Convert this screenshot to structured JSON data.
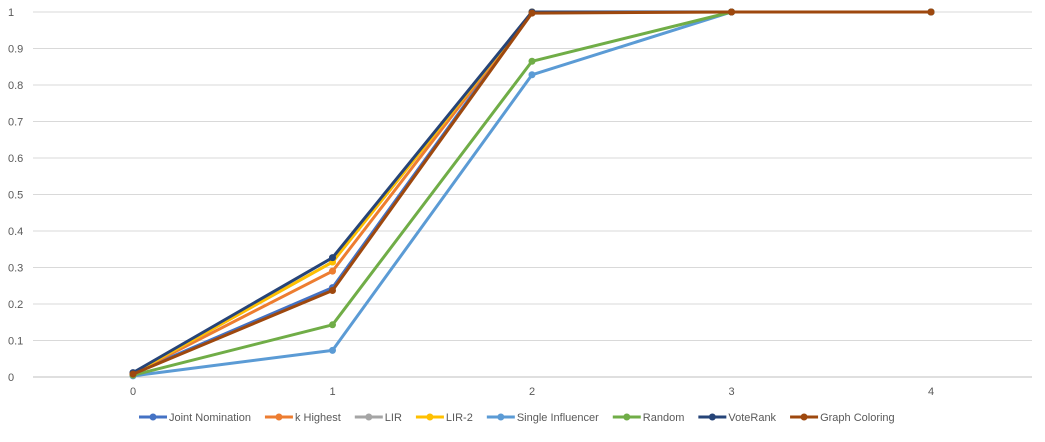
{
  "chart_data": {
    "type": "line",
    "title": "",
    "xlabel": "",
    "ylabel": "",
    "x": [
      0,
      1,
      2,
      3,
      4
    ],
    "x_tick_labels": [
      "0",
      "1",
      "2",
      "3",
      "4"
    ],
    "y_tick_labels": [
      "0",
      "0.1",
      "0.2",
      "0.3",
      "0.4",
      "0.5",
      "0.6",
      "0.7",
      "0.8",
      "0.9",
      "1"
    ],
    "ylim": [
      0,
      1
    ],
    "grid": "horizontal",
    "legend_position": "bottom",
    "series": [
      {
        "name": "Joint Nomination",
        "color": "#4472C4",
        "values": [
          0.01,
          0.245,
          1.0,
          1.0,
          1.0
        ]
      },
      {
        "name": "k Highest",
        "color": "#ED7D31",
        "values": [
          0.01,
          0.29,
          1.0,
          1.0,
          1.0
        ]
      },
      {
        "name": "LIR",
        "color": "#A5A5A5",
        "values": [
          0.01,
          0.315,
          1.0,
          1.0,
          1.0
        ]
      },
      {
        "name": "LIR-2",
        "color": "#FFC000",
        "values": [
          0.01,
          0.315,
          1.0,
          1.0,
          1.0
        ]
      },
      {
        "name": "Single Influencer",
        "color": "#5B9BD5",
        "values": [
          0.003,
          0.073,
          0.828,
          1.0,
          1.0
        ]
      },
      {
        "name": "Random",
        "color": "#70AD47",
        "values": [
          0.005,
          0.143,
          0.865,
          1.0,
          1.0
        ]
      },
      {
        "name": "VoteRank",
        "color": "#264478",
        "values": [
          0.012,
          0.327,
          1.0,
          1.0,
          1.0
        ]
      },
      {
        "name": "Graph Coloring",
        "color": "#9E480E",
        "values": [
          0.008,
          0.237,
          0.997,
          1.0,
          1.0
        ]
      }
    ]
  }
}
